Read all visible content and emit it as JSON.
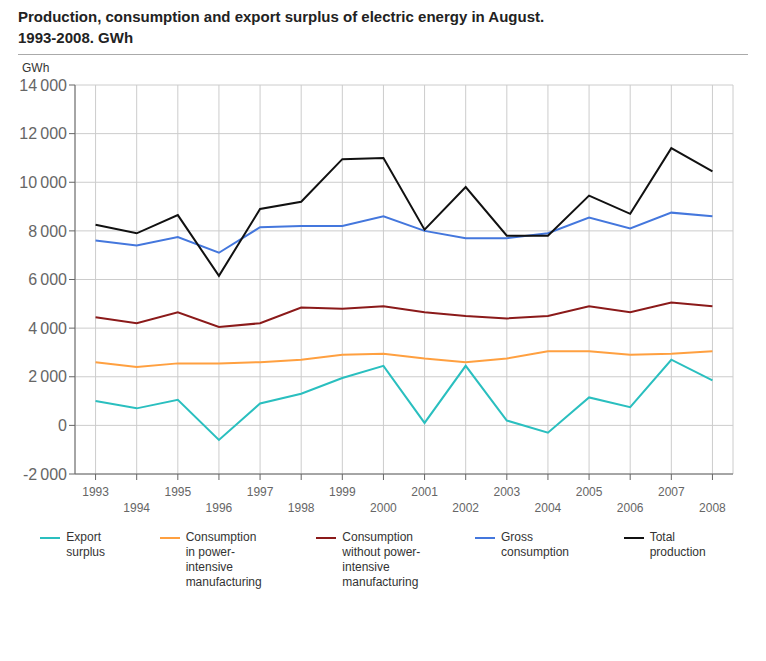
{
  "chart_data": {
    "type": "line",
    "title": "Production, consumption and export surplus of electric energy in August.",
    "subtitle": "1993-2008. GWh",
    "ylabel": "GWh",
    "x": [
      1993,
      1994,
      1995,
      1996,
      1997,
      1998,
      1999,
      2000,
      2001,
      2002,
      2003,
      2004,
      2005,
      2006,
      2007,
      2008
    ],
    "series": [
      {
        "name": "Export\nsurplus",
        "color": "#2ABFBF",
        "values": [
          1000,
          700,
          1050,
          -600,
          900,
          1300,
          1950,
          2450,
          100,
          2450,
          200,
          -300,
          1150,
          750,
          2700,
          1850
        ]
      },
      {
        "name": "Consumption\nin power-\nintensive\nmanufacturing",
        "color": "#FFA040",
        "values": [
          2600,
          2400,
          2550,
          2550,
          2600,
          2700,
          2900,
          2950,
          2750,
          2600,
          2750,
          3050,
          3050,
          2900,
          2950,
          3050
        ]
      },
      {
        "name": "Consumption\nwithout power-\nintensive\nmanufacturing",
        "color": "#8B1A1A",
        "values": [
          4450,
          4200,
          4650,
          4050,
          4200,
          4850,
          4800,
          4900,
          4650,
          4500,
          4400,
          4500,
          4900,
          4650,
          5050,
          4900
        ]
      },
      {
        "name": "Gross\nconsumption",
        "color": "#4477DD",
        "values": [
          7600,
          7400,
          7750,
          7100,
          8150,
          8200,
          8200,
          8600,
          8000,
          7700,
          7700,
          7900,
          8550,
          8100,
          8750,
          8600
        ]
      },
      {
        "name": "Total\nproduction",
        "color": "#111111",
        "values": [
          8250,
          7900,
          8650,
          6150,
          8900,
          9200,
          10950,
          11000,
          8050,
          9800,
          7800,
          7800,
          9450,
          8700,
          11400,
          10450
        ]
      }
    ],
    "xlim": [
      1992.5,
      2008.5
    ],
    "xticks": [
      1993,
      1994,
      1995,
      1996,
      1997,
      1998,
      1999,
      2000,
      2001,
      2002,
      2003,
      2004,
      2005,
      2006,
      2007,
      2008
    ],
    "ylim": [
      -2000,
      14000
    ],
    "yticks": [
      {
        "value": -2000,
        "label": "-2 000"
      },
      0,
      {
        "value": 2000,
        "label": "2 000"
      },
      {
        "value": 4000,
        "label": "4 000"
      },
      {
        "value": 6000,
        "label": "6 000"
      },
      {
        "value": 8000,
        "label": "8 000"
      },
      {
        "value": 10000,
        "label": "10 000"
      },
      {
        "value": 12000,
        "label": "12 000"
      },
      {
        "value": 14000,
        "label": "14 000"
      }
    ],
    "grid": true
  }
}
